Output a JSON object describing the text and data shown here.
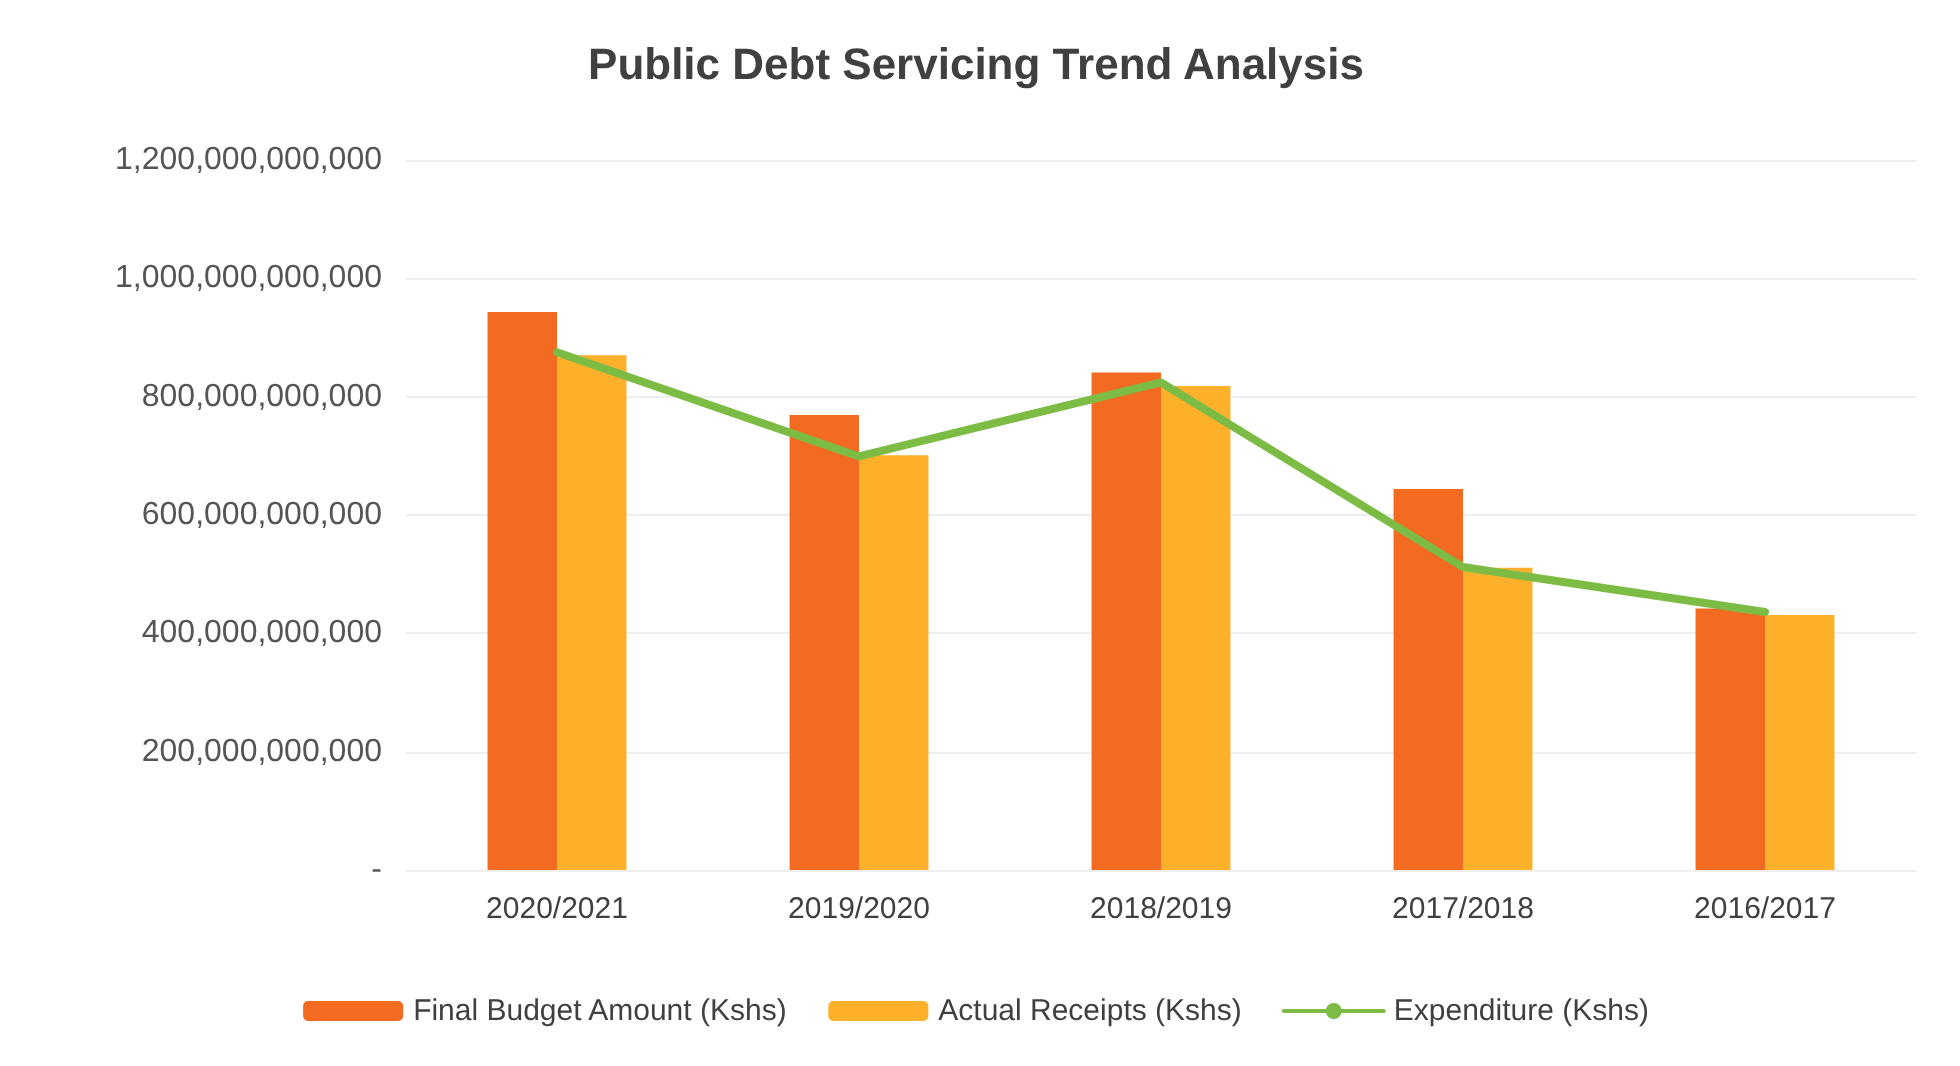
{
  "chart_data": {
    "type": "bar",
    "title": "Public Debt Servicing Trend Analysis",
    "categories": [
      "2020/2021",
      "2019/2020",
      "2018/2019",
      "2017/2018",
      "2016/2017"
    ],
    "series": [
      {
        "name": "Final Budget Amount (Kshs)",
        "color": "#f26b21",
        "values": [
          943000000000,
          769000000000,
          841000000000,
          644000000000,
          442000000000
        ]
      },
      {
        "name": "Actual Receipts (Kshs)",
        "color": "#fdb02a",
        "values": [
          870000000000,
          701000000000,
          818000000000,
          511000000000,
          431000000000
        ]
      },
      {
        "name": "Expenditure (Kshs)",
        "type": "line",
        "color": "#7cbc45",
        "values": [
          875000000000,
          699000000000,
          824000000000,
          512000000000,
          436000000000
        ]
      }
    ],
    "ylim": [
      0,
      1200000000000
    ],
    "yticks": [
      {
        "value": 0,
        "label": "-"
      },
      {
        "value": 200000000000,
        "label": "200,000,000,000"
      },
      {
        "value": 400000000000,
        "label": "400,000,000,000"
      },
      {
        "value": 600000000000,
        "label": "600,000,000,000"
      },
      {
        "value": 800000000000,
        "label": "800,000,000,000"
      },
      {
        "value": 1000000000000,
        "label": "1,000,000,000,000"
      },
      {
        "value": 1200000000000,
        "label": "1,200,000,000,000"
      }
    ],
    "grid": "y",
    "legend": "bottom",
    "marker": "none",
    "line_style": "solid"
  }
}
